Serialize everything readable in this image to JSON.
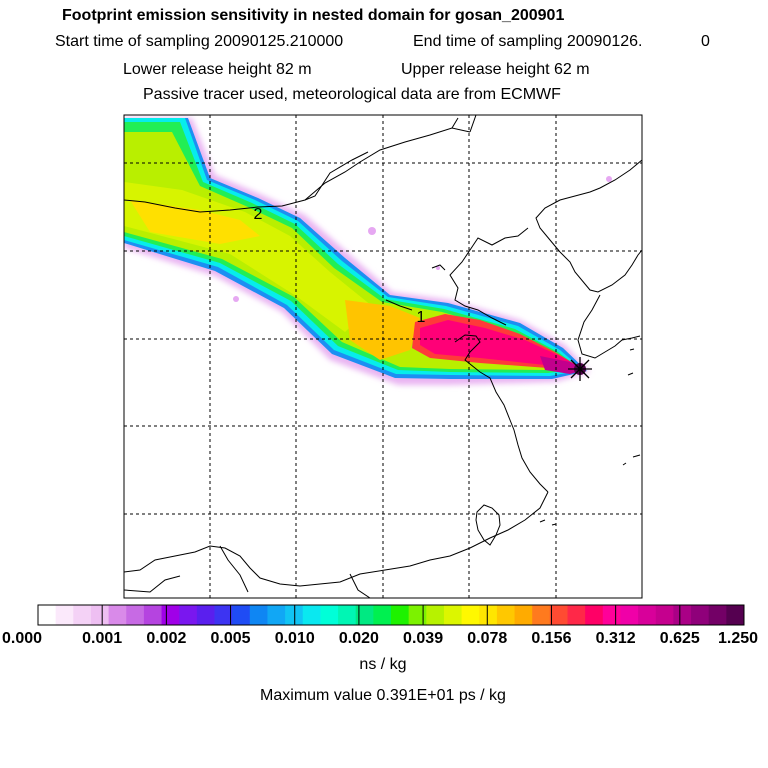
{
  "header": {
    "title": "Footprint emission sensitivity in nested domain for gosan_200901",
    "start_label": "Start time of sampling 20090125.210000",
    "end_label": "End time of sampling 20090126.",
    "end_suffix": "0",
    "lower_release": "Lower release height   82 m",
    "upper_release": "Upper release height   62 m",
    "tracer_note": "Passive tracer used, meteorological data are from ECMWF"
  },
  "map": {
    "labels": [
      {
        "text": "1"
      },
      {
        "text": "2"
      }
    ]
  },
  "colorbar": {
    "ticks": [
      "0.000",
      "0.001",
      "0.002",
      "0.005",
      "0.010",
      "0.020",
      "0.039",
      "0.078",
      "0.156",
      "0.312",
      "0.625",
      "1.250"
    ],
    "colors": [
      "#ffffff",
      "#fbe9fb",
      "#f4d2f6",
      "#eebff2",
      "#d98ae9",
      "#c76ae4",
      "#b544e0",
      "#a000e8",
      "#7a17ef",
      "#5a1fee",
      "#3d34f2",
      "#1f4cf4",
      "#0f86f3",
      "#11a7f5",
      "#11c4f4",
      "#0ae8f0",
      "#00ffd8",
      "#00f6b4",
      "#00e982",
      "#00f050",
      "#1ef200",
      "#7cf200",
      "#b7f200",
      "#dcf600",
      "#fff800",
      "#ffe600",
      "#ffc800",
      "#ffab00",
      "#ff7a1e",
      "#ff4b32",
      "#ff2848",
      "#ff0066",
      "#ff0099",
      "#f000a8",
      "#d8009a",
      "#c5008e",
      "#aa0086",
      "#8f007a",
      "#730066",
      "#550050"
    ],
    "units": "ns / kg"
  },
  "footer": {
    "max_value": "Maximum value  0.391E+01 ps / kg"
  }
}
